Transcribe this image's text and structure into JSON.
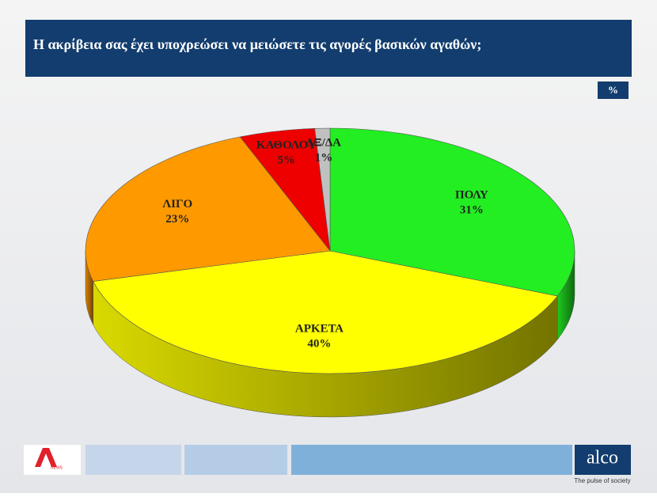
{
  "chart_data": {
    "type": "pie",
    "title": "Η ακρίβεια σας έχει υποχρεώσει να μειώσετε τις αγορές βασικών αγαθών;",
    "unit": "%",
    "categories": [
      "ΠΟΛΥ",
      "ΑΡΚΕΤΑ",
      "ΛΙΓΟ",
      "ΚΑΘΟΛΟΥ",
      "ΔΞ/ΔΑ"
    ],
    "values": [
      31,
      40,
      23,
      5,
      1
    ],
    "value_labels": [
      "31%",
      "40%",
      "23%",
      "5%",
      "1%"
    ],
    "colors": [
      "#22ee22",
      "#ffff00",
      "#ff9900",
      "#ee0000",
      "#c0c0c0"
    ]
  },
  "footer": {
    "news_logo": "NEWS",
    "brand": "alco",
    "tagline": "The pulse of society"
  }
}
